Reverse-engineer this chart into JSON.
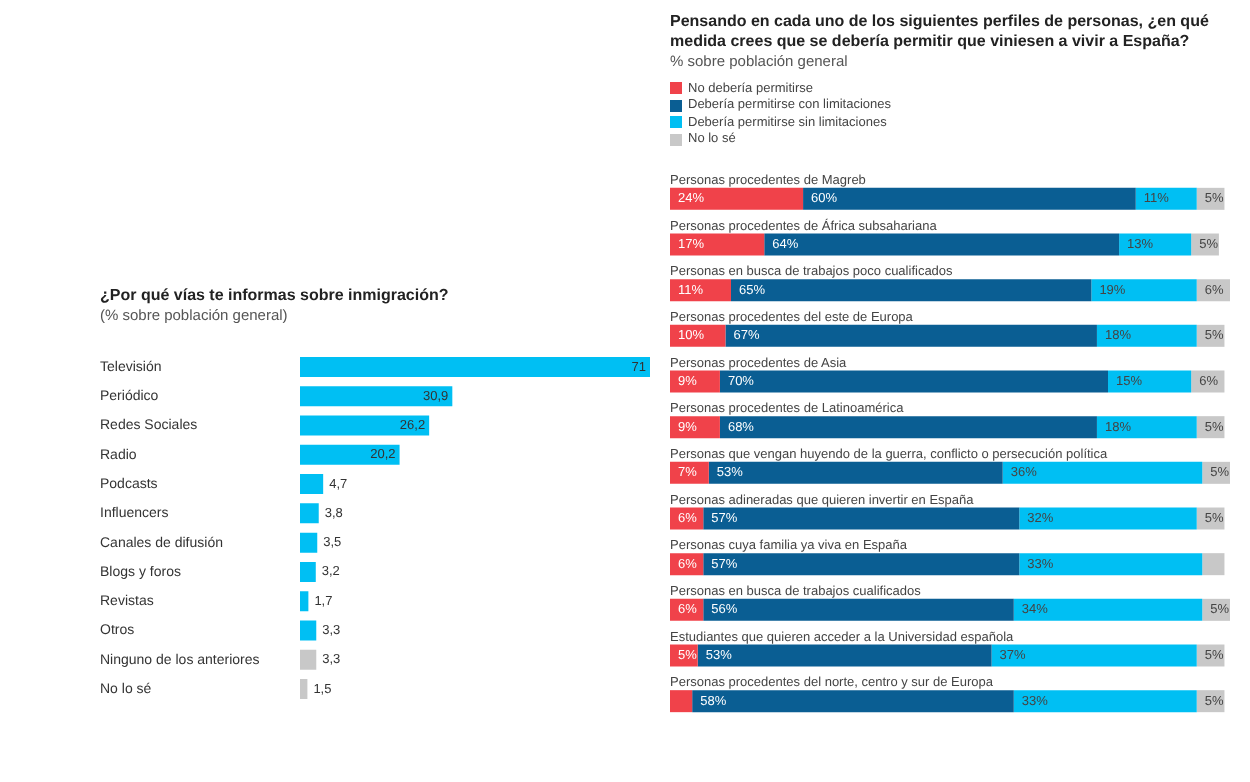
{
  "chart_data": [
    {
      "type": "bar",
      "orientation": "horizontal",
      "title": "¿Por qué vías te informas sobre inmigración?",
      "subtitle": "(% sobre población general)",
      "categories": [
        "Televisión",
        "Periódico",
        "Redes Sociales",
        "Radio",
        "Podcasts",
        "Influencers",
        "Canales de difusión",
        "Blogs y foros",
        "Revistas",
        "Otros",
        "Ninguno de los anteriores",
        "No lo sé"
      ],
      "values": [
        71,
        30.9,
        26.2,
        20.2,
        4.7,
        3.8,
        3.5,
        3.2,
        1.7,
        3.3,
        3.3,
        1.5
      ],
      "value_labels": [
        "71",
        "30,9",
        "26,2",
        "20,2",
        "4,7",
        "3,8",
        "3,5",
        "3,2",
        "1,7",
        "3,3",
        "3,3",
        "1,5"
      ],
      "colors": [
        "#00bff3",
        "#00bff3",
        "#00bff3",
        "#00bff3",
        "#00bff3",
        "#00bff3",
        "#00bff3",
        "#00bff3",
        "#00bff3",
        "#00bff3",
        "#c8c8c8",
        "#c8c8c8"
      ],
      "xlim": [
        0,
        71
      ],
      "tick_labels": "y"
    },
    {
      "type": "bar",
      "orientation": "horizontal",
      "stacked": true,
      "title": "Pensando en cada uno de los siguientes perfiles de personas, ¿en qué medida crees que se debería permitir que viniesen a vivir a España?",
      "subtitle": "% sobre población general",
      "categories": [
        "Personas procedentes de Magreb",
        "Personas procedentes de África subsahariana",
        "Personas en busca de trabajos poco cualificados",
        "Personas procedentes del este de Europa",
        "Personas procedentes de Asia",
        "Personas procedentes de Latinoamérica",
        "Personas que vengan huyendo de la guerra, conflicto o persecución política",
        "Personas adineradas que quieren invertir en España",
        "Personas cuya familia ya viva en España",
        "Personas en busca de trabajos cualificados",
        "Estudiantes que quieren acceder a la Universidad española",
        "Personas procedentes del norte, centro y sur de Europa"
      ],
      "series": [
        {
          "name": "No debería permitirse",
          "color": "#f0424a",
          "values": [
            24,
            17,
            11,
            10,
            9,
            9,
            7,
            6,
            6,
            6,
            5,
            4
          ],
          "value_labels": [
            "24%",
            "17%",
            "11%",
            "10%",
            "9%",
            "9%",
            "7%",
            "6%",
            "6%",
            "6%",
            "5%",
            null
          ]
        },
        {
          "name": "Debería permitirse con limitaciones",
          "color": "#0a5e93",
          "values": [
            60,
            64,
            65,
            67,
            70,
            68,
            53,
            57,
            57,
            56,
            53,
            58
          ],
          "value_labels": [
            "60%",
            "64%",
            "65%",
            "67%",
            "70%",
            "68%",
            "53%",
            "57%",
            "57%",
            "56%",
            "53%",
            "58%"
          ]
        },
        {
          "name": "Debería permitirse sin limitaciones",
          "color": "#00bff3",
          "values": [
            11,
            13,
            19,
            18,
            15,
            18,
            36,
            32,
            33,
            34,
            37,
            33
          ],
          "value_labels": [
            "11%",
            "13%",
            "19%",
            "18%",
            "15%",
            "18%",
            "36%",
            "32%",
            "33%",
            "34%",
            "37%",
            "33%"
          ]
        },
        {
          "name": "No lo sé",
          "color": "#c8c8c8",
          "values": [
            5,
            5,
            6,
            5,
            6,
            5,
            5,
            5,
            4,
            5,
            5,
            5
          ],
          "value_labels": [
            "5%",
            "5%",
            "6%",
            "5%",
            "6%",
            "5%",
            "5%",
            "5%",
            null,
            "5%",
            "5%",
            "5%"
          ]
        }
      ],
      "xlim": [
        0,
        101
      ],
      "tick_labels": false,
      "legend": "top left"
    }
  ]
}
